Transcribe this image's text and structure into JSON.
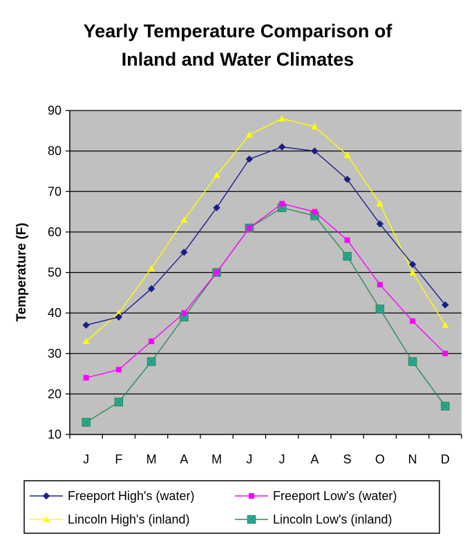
{
  "chart_data": {
    "type": "line",
    "title_lines": [
      "Yearly Temperature Comparison of",
      "Inland and Water Climates"
    ],
    "xlabel": "",
    "ylabel": "Temperature (F)",
    "categories": [
      "J",
      "F",
      "M",
      "A",
      "M",
      "J",
      "J",
      "A",
      "S",
      "O",
      "N",
      "D"
    ],
    "ylim": [
      10,
      90
    ],
    "yticks": [
      10,
      20,
      30,
      40,
      50,
      60,
      70,
      80,
      90
    ],
    "grid": true,
    "legend_position": "bottom",
    "series": [
      {
        "name": "Freeport High's (water)",
        "color": "#1b1f8a",
        "marker": "diamond",
        "values": [
          37,
          39,
          46,
          55,
          66,
          78,
          81,
          80,
          73,
          62,
          52,
          42
        ]
      },
      {
        "name": "Freeport Low's (water)",
        "color": "#ff00ff",
        "marker": "square",
        "values": [
          24,
          26,
          33,
          40,
          50,
          61,
          67,
          65,
          58,
          47,
          38,
          30
        ]
      },
      {
        "name": "Lincoln High's (inland)",
        "color": "#ffff00",
        "marker": "triangle",
        "values": [
          33,
          40,
          51,
          63,
          74,
          84,
          88,
          86,
          79,
          67,
          50,
          37
        ]
      },
      {
        "name": "Lincoln Low's (inland)",
        "color": "#2e8b57",
        "marker": "boxed-x",
        "values": [
          13,
          18,
          28,
          39,
          50,
          61,
          66,
          64,
          54,
          41,
          28,
          17
        ]
      }
    ]
  },
  "colors": {
    "plot_background": "#c0c0c0",
    "gridline": "#000000",
    "lincoln_low_fill": "#20b2aa"
  }
}
